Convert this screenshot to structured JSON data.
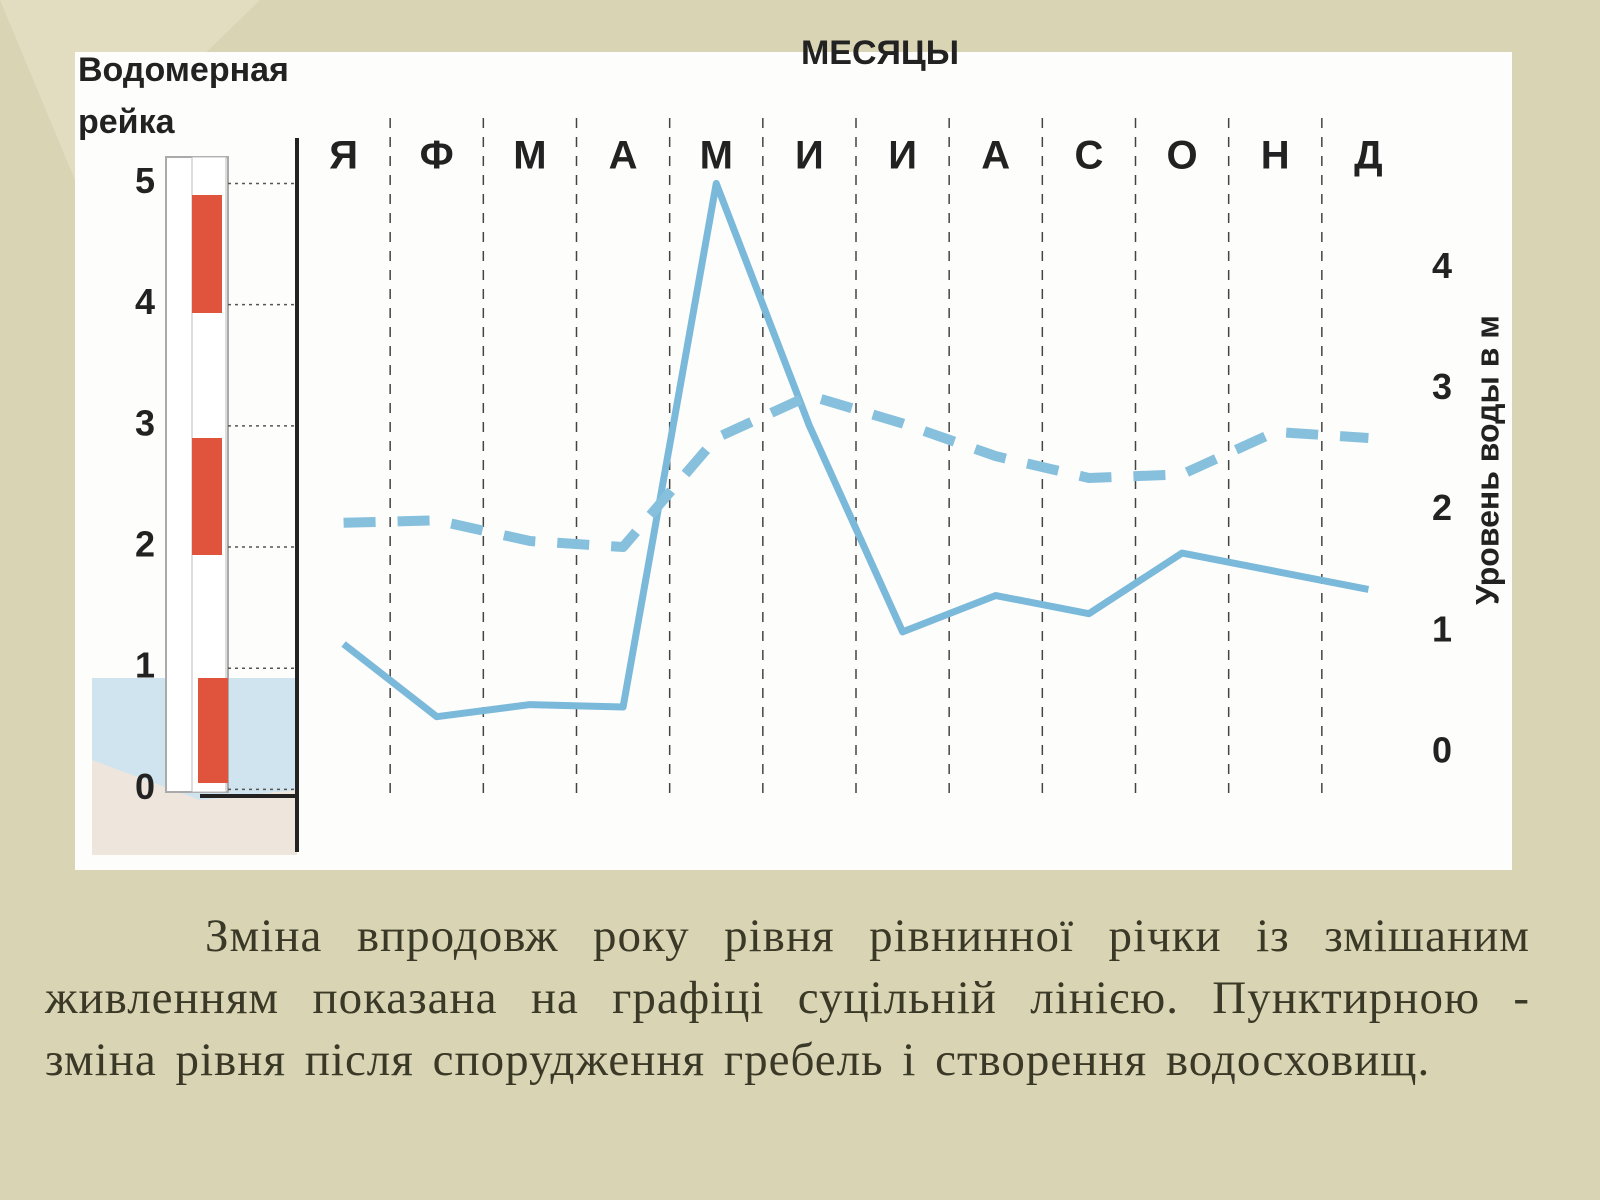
{
  "chart_data": {
    "type": "line",
    "x_label": "МЕСЯЦЫ",
    "gauge_label": "Водомерная рейка",
    "y2_label": "Уровень воды в м",
    "categories": [
      "Я",
      "Ф",
      "М",
      "А",
      "М",
      "И",
      "И",
      "А",
      "С",
      "О",
      "Н",
      "Д"
    ],
    "series": [
      {
        "color": "#7ab9da",
        "style": "solid",
        "axis": "y2",
        "values": [
          0.9,
          0.3,
          0.4,
          0.38,
          4.7,
          2.7,
          1.0,
          1.3,
          1.15,
          1.65,
          1.5,
          1.35
        ]
      },
      {
        "color": "#86c0dc",
        "style": "dashed",
        "axis": "y2",
        "values": [
          1.9,
          1.92,
          1.75,
          1.7,
          2.6,
          2.95,
          2.72,
          2.45,
          2.27,
          2.3,
          2.65,
          2.6
        ]
      }
    ],
    "ylim": [
      -0.5,
      5.4
    ],
    "yticks": [
      0,
      1,
      2,
      3,
      4,
      5
    ],
    "y2lim": [
      -0.8,
      5.1
    ],
    "y2ticks": [
      0,
      1,
      2,
      3,
      4
    ]
  },
  "caption": "Зміна впродовж року рівня рівнинної річки із змішаним живленням показана на графіці суцільній лінією. Пунктирною - зміна  рівня після спорудження гребель і створення водосховищ."
}
